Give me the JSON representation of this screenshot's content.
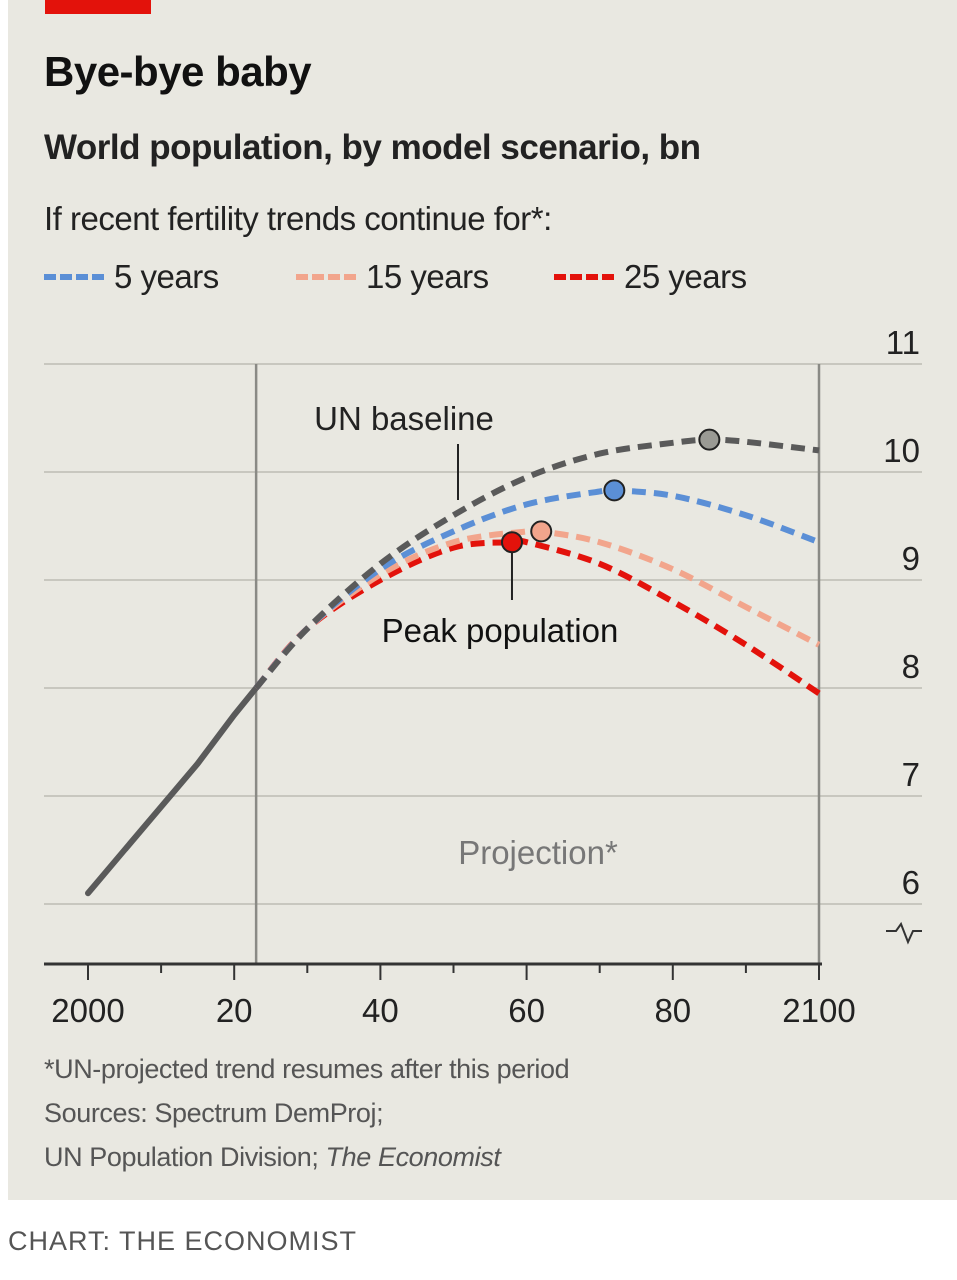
{
  "header": {
    "title": "Bye-bye baby",
    "subtitle": "World population, by model scenario, bn",
    "legend_title": "If recent fertility trends continue for*:"
  },
  "colors": {
    "background": "#e9e8e1",
    "accent_red": "#e3120b",
    "un_baseline": "#5a5a5a",
    "five_years": "#5b8fd6",
    "fifteen_years": "#f2a58c",
    "twentyfive_years": "#e3120b"
  },
  "chart_data": {
    "type": "line",
    "title": "Bye-bye baby",
    "subtitle": "World population, by model scenario, bn",
    "x_ticks": [
      2000,
      2010,
      2020,
      2030,
      2040,
      2050,
      2060,
      2070,
      2080,
      2090,
      2100
    ],
    "x_tick_labels": [
      "2000",
      "20",
      "40",
      "60",
      "80",
      "2100"
    ],
    "x_tick_label_years": [
      2000,
      2020,
      2040,
      2060,
      2080,
      2100
    ],
    "y_ticks": [
      6,
      7,
      8,
      9,
      10,
      11
    ],
    "y_tick_labels": [
      "6",
      "7",
      "8",
      "9",
      "10",
      "11"
    ],
    "xlim": [
      1994,
      2100
    ],
    "ylim": [
      5.4,
      11
    ],
    "grid": true,
    "axis_break": "y",
    "projection_start": 2023,
    "projection_label": "Projection*",
    "historical": {
      "x": [
        2000,
        2005,
        2010,
        2015,
        2020,
        2023
      ],
      "y": [
        6.1,
        6.5,
        6.9,
        7.3,
        7.75,
        8.0
      ]
    },
    "series": [
      {
        "name": "UN baseline",
        "color": "#5a5a5a",
        "x": [
          2023,
          2030,
          2040,
          2050,
          2060,
          2070,
          2080,
          2085,
          2090,
          2100
        ],
        "y": [
          8.0,
          8.55,
          9.15,
          9.6,
          9.95,
          10.17,
          10.27,
          10.3,
          10.28,
          10.2
        ],
        "peak": {
          "x": 2085,
          "y": 10.3
        }
      },
      {
        "name": "5 years",
        "color": "#5b8fd6",
        "x": [
          2023,
          2030,
          2040,
          2050,
          2060,
          2070,
          2072,
          2080,
          2090,
          2100
        ],
        "y": [
          8.0,
          8.55,
          9.1,
          9.45,
          9.7,
          9.82,
          9.83,
          9.78,
          9.6,
          9.35
        ],
        "peak": {
          "x": 2072,
          "y": 9.83
        }
      },
      {
        "name": "15 years",
        "color": "#f2a58c",
        "x": [
          2023,
          2030,
          2040,
          2050,
          2060,
          2062,
          2070,
          2080,
          2090,
          2100
        ],
        "y": [
          8.0,
          8.55,
          9.05,
          9.35,
          9.45,
          9.45,
          9.35,
          9.1,
          8.75,
          8.4
        ],
        "peak": {
          "x": 2062,
          "y": 9.45
        }
      },
      {
        "name": "25 years",
        "color": "#e3120b",
        "x": [
          2023,
          2030,
          2040,
          2050,
          2058,
          2060,
          2070,
          2080,
          2090,
          2100
        ],
        "y": [
          8.0,
          8.55,
          9.0,
          9.3,
          9.35,
          9.35,
          9.15,
          8.8,
          8.4,
          7.95
        ],
        "peak": {
          "x": 2058,
          "y": 9.35
        }
      }
    ],
    "annotations": [
      {
        "text": "UN baseline"
      },
      {
        "text": "Peak population"
      }
    ]
  },
  "legend": [
    {
      "label": "5 years",
      "color": "#5b8fd6"
    },
    {
      "label": "15 years",
      "color": "#f2a58c"
    },
    {
      "label": "25 years",
      "color": "#e3120b"
    }
  ],
  "footer": {
    "note": "*UN-projected trend resumes after this period",
    "sources_line1": "Sources: Spectrum DemProj;",
    "sources_line2_a": "UN Population Division; ",
    "sources_line2_b": "The Economist",
    "credit": "CHART: THE ECONOMIST"
  }
}
